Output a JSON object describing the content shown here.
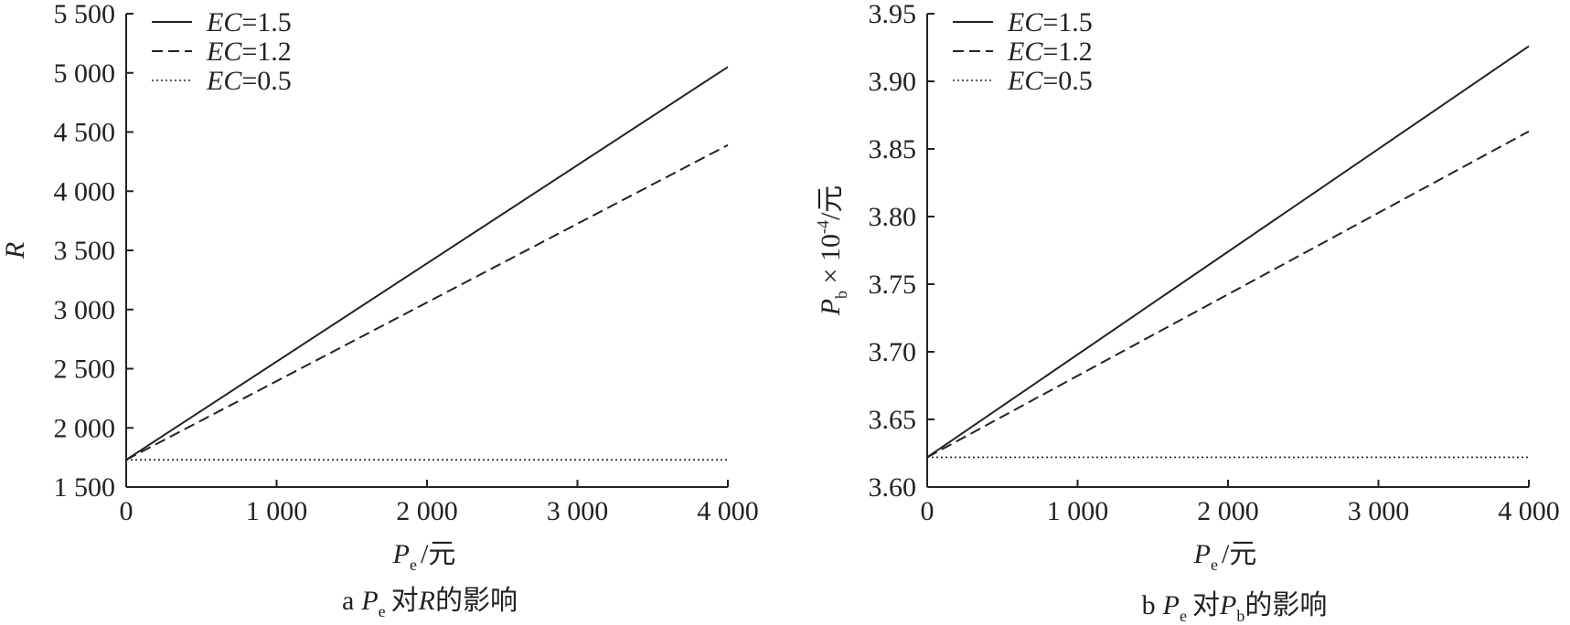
{
  "chart_data": [
    {
      "type": "line",
      "panel_label": "a",
      "caption_mid": "对",
      "caption_target": "R",
      "caption_tail": "的影响",
      "xlabel_main": "P",
      "xlabel_sub": "e",
      "xlabel_unit": "/元",
      "ylabel": "R",
      "xlim": [
        0,
        4000
      ],
      "ylim": [
        1500,
        5500
      ],
      "x_ticks": [
        "0",
        "1 000",
        "2 000",
        "3 000",
        "4 000"
      ],
      "x_tick_values": [
        0,
        1000,
        2000,
        3000,
        4000
      ],
      "y_ticks": [
        "1 500",
        "2 000",
        "2 500",
        "3 000",
        "3 500",
        "4 000",
        "4 500",
        "5 000",
        "5 500"
      ],
      "y_tick_values": [
        1500,
        2000,
        2500,
        3000,
        3500,
        4000,
        4500,
        5000,
        5500
      ],
      "x": [
        0,
        4000
      ],
      "series": [
        {
          "name_italic": "EC",
          "name_rest": "=1.5",
          "style": "solid",
          "values": [
            1730,
            5050
          ]
        },
        {
          "name_italic": "EC",
          "name_rest": "=1.2",
          "style": "dashed",
          "values": [
            1730,
            4390
          ]
        },
        {
          "name_italic": "EC",
          "name_rest": "=0.5",
          "style": "dotted",
          "values": [
            1730,
            1730
          ]
        }
      ],
      "grid": false,
      "legend_position": "top-left"
    },
    {
      "type": "line",
      "panel_label": "b",
      "caption_mid": "对",
      "caption_target": "P",
      "caption_target_sub": "b",
      "caption_tail": "的影响",
      "xlabel_main": "P",
      "xlabel_sub": "e",
      "xlabel_unit": "/元",
      "ylabel_main": "P",
      "ylabel_sub": "b",
      "ylabel_rest": " × 10",
      "ylabel_sup": "-4",
      "ylabel_unit": "/元",
      "xlim": [
        0,
        4000
      ],
      "ylim": [
        3.6,
        3.95
      ],
      "x_ticks": [
        "0",
        "1 000",
        "2 000",
        "3 000",
        "4 000"
      ],
      "x_tick_values": [
        0,
        1000,
        2000,
        3000,
        4000
      ],
      "y_ticks": [
        "3.60",
        "3.65",
        "3.70",
        "3.75",
        "3.80",
        "3.85",
        "3.90",
        "3.95"
      ],
      "y_tick_values": [
        3.6,
        3.65,
        3.7,
        3.75,
        3.8,
        3.85,
        3.9,
        3.95
      ],
      "x": [
        0,
        4000
      ],
      "series": [
        {
          "name_italic": "EC",
          "name_rest": "=1.5",
          "style": "solid",
          "values": [
            3.622,
            3.926
          ]
        },
        {
          "name_italic": "EC",
          "name_rest": "=1.2",
          "style": "dashed",
          "values": [
            3.622,
            3.863
          ]
        },
        {
          "name_italic": "EC",
          "name_rest": "=0.5",
          "style": "dotted",
          "values": [
            3.622,
            3.622
          ]
        }
      ],
      "grid": false,
      "legend_position": "top-left"
    }
  ]
}
